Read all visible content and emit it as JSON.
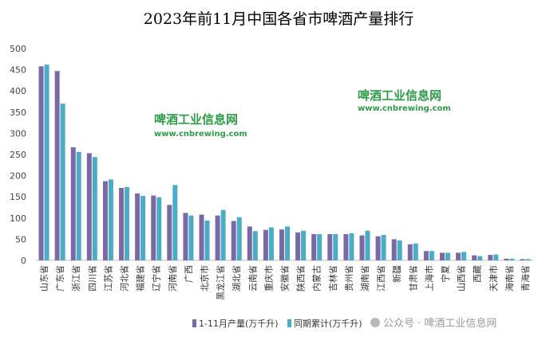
{
  "chart_data": {
    "type": "bar",
    "title": "2023年前11月中国各省市啤酒产量排行",
    "categories": [
      "山东省",
      "广东省",
      "浙江省",
      "四川省",
      "江苏省",
      "河北省",
      "福建省",
      "辽宁省",
      "河南省",
      "广西",
      "北京市",
      "黑龙江省",
      "湖北省",
      "云南省",
      "重庆市",
      "安徽省",
      "陕西省",
      "内蒙古",
      "吉林省",
      "贵州省",
      "湖南省",
      "江西省",
      "新疆",
      "甘肃省",
      "上海市",
      "宁夏",
      "山西省",
      "西藏",
      "天津市",
      "海南省",
      "青海省"
    ],
    "series": [
      {
        "name": "1-11月产量(万千升)",
        "color": "#7b68a6",
        "values": [
          458,
          447,
          267,
          253,
          187,
          171,
          158,
          153,
          131,
          112,
          108,
          106,
          93,
          80,
          72,
          73,
          66,
          62,
          62,
          62,
          59,
          57,
          50,
          38,
          22,
          18,
          18,
          12,
          13,
          4,
          3
        ]
      },
      {
        "name": "同期累计(万千升)",
        "color": "#4bacc6",
        "values": [
          462,
          370,
          256,
          244,
          191,
          173,
          152,
          149,
          178,
          106,
          94,
          119,
          102,
          69,
          78,
          80,
          70,
          62,
          62,
          64,
          70,
          60,
          47,
          40,
          22,
          18,
          20,
          10,
          14,
          4,
          3
        ]
      }
    ],
    "ylim": [
      0,
      500
    ],
    "yticks": [
      0,
      50,
      100,
      150,
      200,
      250,
      300,
      350,
      400,
      450,
      500
    ],
    "grid": false,
    "legend_position": "bottom"
  },
  "watermarks": [
    {
      "title": "啤酒工业信息网",
      "url": "www.cnbrewing.com"
    },
    {
      "title": "啤酒工业信息网",
      "url": "www.cnbrewing.com"
    }
  ],
  "footer_watermark": "公众号 · 啤酒工业信息网"
}
